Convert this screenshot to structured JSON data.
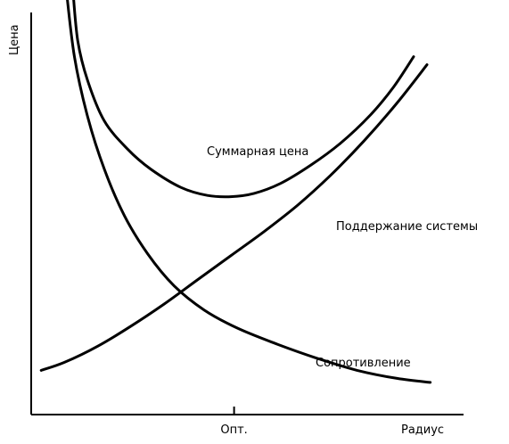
{
  "chart_data": {
    "type": "line",
    "title": "",
    "xlabel": "Радиус",
    "ylabel": "Цена",
    "xticks": [
      {
        "label": "Опт.",
        "x": 6.1
      }
    ],
    "xlim": [
      0,
      13
    ],
    "ylim": [
      0,
      10
    ],
    "grid": false,
    "series": [
      {
        "name": "Суммарная цена",
        "points": [
          [
            1.25,
            10.6
          ],
          [
            1.4,
            9.3
          ],
          [
            1.7,
            8.3
          ],
          [
            2.2,
            7.3
          ],
          [
            2.9,
            6.6
          ],
          [
            3.6,
            6.1
          ],
          [
            4.5,
            5.65
          ],
          [
            5.3,
            5.45
          ],
          [
            6.0,
            5.42
          ],
          [
            6.7,
            5.5
          ],
          [
            7.5,
            5.75
          ],
          [
            8.4,
            6.2
          ],
          [
            9.3,
            6.75
          ],
          [
            10.2,
            7.45
          ],
          [
            10.9,
            8.15
          ],
          [
            11.5,
            8.9
          ]
        ]
      },
      {
        "name": "Поддержание системы",
        "points": [
          [
            0.3,
            1.1
          ],
          [
            1.0,
            1.3
          ],
          [
            2.0,
            1.7
          ],
          [
            3.0,
            2.2
          ],
          [
            4.0,
            2.75
          ],
          [
            5.0,
            3.35
          ],
          [
            6.0,
            3.95
          ],
          [
            7.0,
            4.55
          ],
          [
            8.0,
            5.2
          ],
          [
            9.0,
            5.95
          ],
          [
            10.0,
            6.8
          ],
          [
            11.0,
            7.75
          ],
          [
            11.9,
            8.7
          ]
        ]
      },
      {
        "name": "Сопротивление",
        "points": [
          [
            1.05,
            10.6
          ],
          [
            1.3,
            8.9
          ],
          [
            1.7,
            7.4
          ],
          [
            2.2,
            6.1
          ],
          [
            2.8,
            4.95
          ],
          [
            3.5,
            4.0
          ],
          [
            4.3,
            3.2
          ],
          [
            5.2,
            2.6
          ],
          [
            6.2,
            2.15
          ],
          [
            7.4,
            1.75
          ],
          [
            8.6,
            1.4
          ],
          [
            9.8,
            1.1
          ],
          [
            11.0,
            0.9
          ],
          [
            12.0,
            0.8
          ]
        ]
      }
    ],
    "annotations": [
      {
        "text": "Суммарная цена"
      },
      {
        "text": "Поддержание системы"
      },
      {
        "text": "Сопротивление"
      }
    ]
  }
}
